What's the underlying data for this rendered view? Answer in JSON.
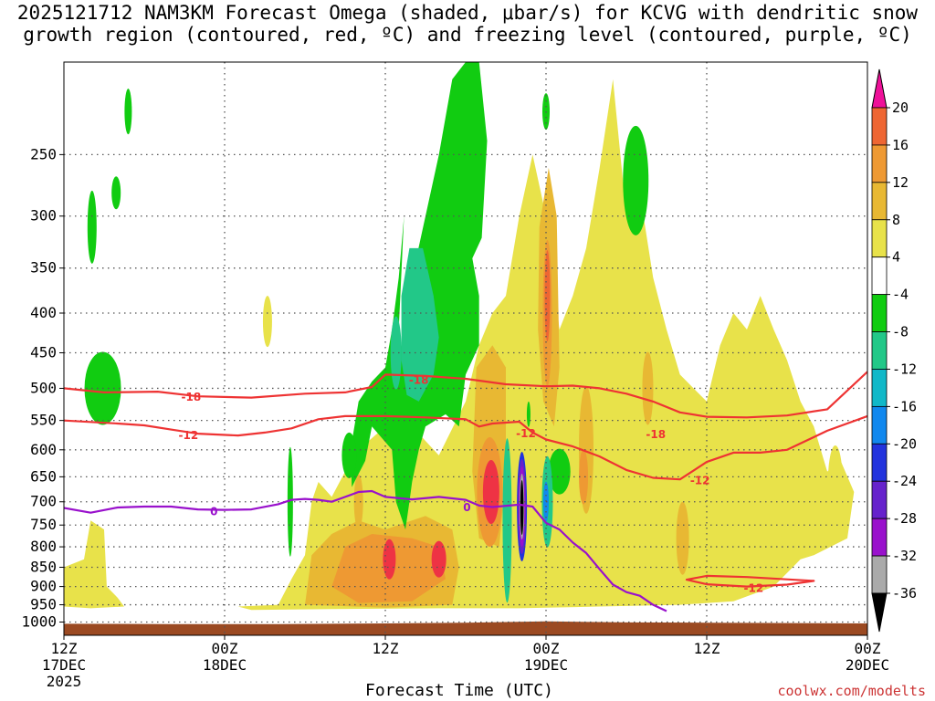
{
  "chart_data": {
    "type": "heatmap",
    "title_line1": "2025121712 NAM3KM Forecast Omega (shaded, μbar/s) for KCVG with dendritic snow",
    "title_line2": "growth region (contoured, red, ºC) and freezing level (contoured, purple, ºC)",
    "xlabel": "Forecast Time (UTC)",
    "ylabel": "",
    "credit": "coolwx.com/modelts",
    "y_axis": {
      "scale": "log-pressure",
      "ylim_hpa": [
        1040,
        190
      ],
      "ticks": [
        250,
        300,
        350,
        400,
        450,
        500,
        550,
        600,
        650,
        700,
        750,
        800,
        850,
        900,
        950,
        1000
      ]
    },
    "x_axis": {
      "xlim_hours": [
        0,
        60
      ],
      "ticks": [
        {
          "hour": 0,
          "top": "12Z",
          "mid": "17DEC",
          "bottom": "2025"
        },
        {
          "hour": 12,
          "top": "00Z",
          "mid": "18DEC",
          "bottom": ""
        },
        {
          "hour": 24,
          "top": "12Z",
          "mid": "",
          "bottom": ""
        },
        {
          "hour": 36,
          "top": "00Z",
          "mid": "19DEC",
          "bottom": ""
        },
        {
          "hour": 48,
          "top": "12Z",
          "mid": "",
          "bottom": ""
        },
        {
          "hour": 60,
          "top": "00Z",
          "mid": "20DEC",
          "bottom": ""
        }
      ]
    },
    "colorbar": {
      "levels": [
        20,
        16,
        12,
        8,
        4,
        -4,
        -8,
        -12,
        -16,
        -20,
        -24,
        -28,
        -32,
        -36
      ],
      "colors": [
        "#ee3344",
        "#ee6633",
        "#ee9933",
        "#e8b833",
        "#e8e24a",
        "#ffffff",
        "#11cc11",
        "#22c888",
        "#11b8c8",
        "#1188ee",
        "#2233dd",
        "#6622cc",
        "#9911cc",
        "#aaaaaa",
        "#000000"
      ],
      "top_arrow_color": "#ee1199",
      "bottom_arrow_color": "#000000"
    },
    "colors": {
      "terrain": "#9b4a22",
      "dgz": "#ee3333",
      "freezing": "#9911cc",
      "grid": "#555555"
    },
    "contours": [
      {
        "label": "-18",
        "color": "#ee3333",
        "points": [
          [
            0,
            500
          ],
          [
            3,
            506
          ],
          [
            7,
            505
          ],
          [
            10,
            512
          ],
          [
            14,
            514
          ],
          [
            18,
            508
          ],
          [
            21,
            506
          ],
          [
            23,
            498
          ],
          [
            24,
            480
          ],
          [
            27,
            482
          ],
          [
            30,
            486
          ],
          [
            33,
            494
          ],
          [
            36,
            497
          ],
          [
            38,
            496
          ],
          [
            40,
            500
          ],
          [
            42,
            508
          ],
          [
            44,
            520
          ],
          [
            46,
            537
          ],
          [
            48,
            544
          ],
          [
            51,
            545
          ],
          [
            54,
            542
          ],
          [
            57,
            532
          ],
          [
            60,
            476
          ]
        ],
        "labels": [
          {
            "hour": 9.5,
            "p": 513
          },
          {
            "hour": 26.5,
            "p": 488
          },
          {
            "hour": 44.2,
            "p": 573
          }
        ]
      },
      {
        "label": "-12",
        "color": "#ee3333",
        "points": [
          [
            0,
            550
          ],
          [
            4,
            555
          ],
          [
            6,
            558
          ],
          [
            8,
            565
          ],
          [
            10,
            572
          ],
          [
            13,
            575
          ],
          [
            15,
            570
          ],
          [
            17,
            563
          ],
          [
            19,
            548
          ],
          [
            21,
            543
          ],
          [
            24,
            543
          ],
          [
            27,
            545
          ],
          [
            30,
            548
          ],
          [
            31,
            560
          ],
          [
            32,
            555
          ],
          [
            34,
            552
          ],
          [
            35,
            570
          ],
          [
            36,
            582
          ],
          [
            38,
            594
          ],
          [
            40,
            612
          ],
          [
            42,
            637
          ],
          [
            44,
            652
          ],
          [
            46,
            655
          ],
          [
            48,
            622
          ],
          [
            50,
            605
          ],
          [
            52,
            605
          ],
          [
            54,
            600
          ],
          [
            57,
            567
          ],
          [
            60,
            543
          ]
        ],
        "labels": [
          {
            "hour": 9.3,
            "p": 575
          },
          {
            "hour": 34.5,
            "p": 572
          },
          {
            "hour": 47.5,
            "p": 657
          }
        ]
      },
      {
        "label": "-12",
        "color": "#ee3333",
        "closed": true,
        "points": [
          [
            46.5,
            882
          ],
          [
            48,
            872
          ],
          [
            51,
            875
          ],
          [
            53.5,
            880
          ],
          [
            56,
            885
          ],
          [
            54,
            895
          ],
          [
            51,
            900
          ],
          [
            48,
            894
          ],
          [
            46.5,
            882
          ]
        ],
        "labels": [
          {
            "hour": 51.5,
            "p": 905
          }
        ]
      },
      {
        "label": "0",
        "color": "#9911cc",
        "points": [
          [
            0,
            713
          ],
          [
            2,
            723
          ],
          [
            4,
            712
          ],
          [
            6,
            710
          ],
          [
            8,
            710
          ],
          [
            10,
            716
          ],
          [
            12,
            717
          ],
          [
            14,
            716
          ],
          [
            16,
            705
          ],
          [
            17,
            696
          ],
          [
            18,
            694
          ],
          [
            19,
            696
          ],
          [
            20,
            700
          ],
          [
            21,
            690
          ],
          [
            22,
            680
          ],
          [
            23,
            678
          ],
          [
            24,
            690
          ],
          [
            26,
            695
          ],
          [
            28,
            690
          ],
          [
            30,
            696
          ],
          [
            31,
            708
          ],
          [
            32,
            711
          ],
          [
            34,
            706
          ],
          [
            35,
            710
          ],
          [
            36,
            745
          ],
          [
            37,
            760
          ],
          [
            38,
            790
          ],
          [
            39,
            815
          ],
          [
            40,
            855
          ],
          [
            41,
            895
          ],
          [
            42,
            915
          ],
          [
            43,
            925
          ],
          [
            44,
            950
          ],
          [
            45,
            968
          ]
        ],
        "labels": [
          {
            "hour": 11.2,
            "p": 721
          },
          {
            "hour": 30.1,
            "p": 712
          }
        ]
      }
    ]
  }
}
